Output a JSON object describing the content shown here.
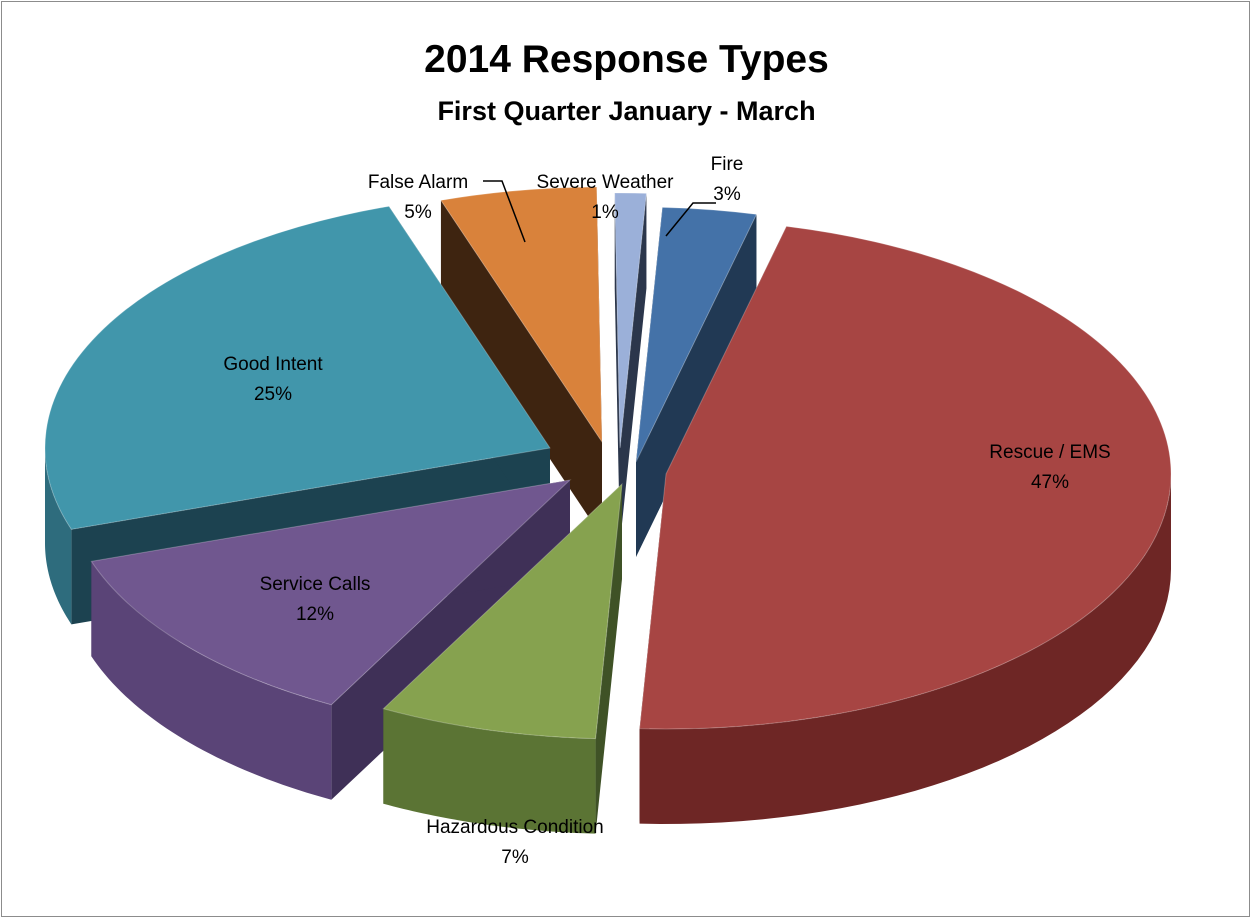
{
  "chart_data": {
    "type": "pie",
    "title": "2014 Response Types",
    "subtitle": "First Quarter January - March",
    "slices": [
      {
        "label": "Fire",
        "value": 3,
        "display": "3%",
        "color": "#4472a8",
        "side_color": "#2e4f75",
        "dark_color": "#213954"
      },
      {
        "label": "Rescue / EMS",
        "value": 47,
        "display": "47%",
        "color": "#a74543",
        "side_color": "#6e2625",
        "dark_color": "#451a19"
      },
      {
        "label": "Hazardous Condition",
        "value": 7,
        "display": "7%",
        "color": "#86a24f",
        "side_color": "#5b7434",
        "dark_color": "#3f5226"
      },
      {
        "label": "Service Calls",
        "value": 12,
        "display": "12%",
        "color": "#70578f",
        "side_color": "#5a4477",
        "dark_color": "#3f3057"
      },
      {
        "label": "Good Intent",
        "value": 25,
        "display": "25%",
        "color": "#4196ab",
        "side_color": "#2e6c7d",
        "dark_color": "#1c4250"
      },
      {
        "label": "False Alarm",
        "value": 5,
        "display": "5%",
        "color": "#d9823b",
        "side_color": "#5a3315",
        "dark_color": "#3e2410"
      },
      {
        "label": "Severe Weather",
        "value": 1,
        "display": "1%",
        "color": "#9bb0d9",
        "side_color": "#3b4a66",
        "dark_color": "#2b364b"
      }
    ],
    "legend": "none",
    "data_labels": "outside-end with leader lines"
  }
}
